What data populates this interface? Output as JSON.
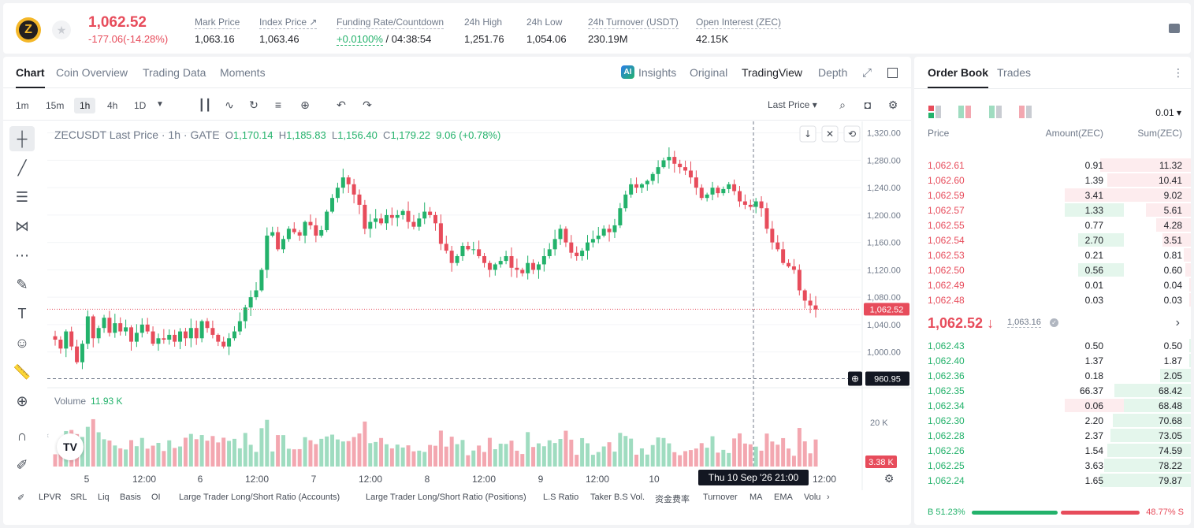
{
  "ticker": {
    "logo_letter": "Z",
    "price": "1,062.52",
    "change": "-177.06(-14.28%)",
    "stats": [
      {
        "label": "Mark Price",
        "value": "1,063.16"
      },
      {
        "label": "Index Price ↗",
        "value": "1,063.46"
      },
      {
        "label": "Funding Rate/Countdown",
        "value_rate": "+0.0100%",
        "value_time": "/ 04:38:54"
      },
      {
        "label": "24h High",
        "value": "1,251.76"
      },
      {
        "label": "24h Low",
        "value": "1,054.06"
      },
      {
        "label": "24h Turnover (USDT)",
        "value": "230.19M"
      },
      {
        "label": "Open Interest (ZEC)",
        "value": "42.15K"
      }
    ]
  },
  "chart_tabs": [
    "Chart",
    "Coin Overview",
    "Trading Data",
    "Moments"
  ],
  "view_tabs": {
    "ai": "AI",
    "insights": "Insights",
    "original": "Original",
    "tradingview": "TradingView",
    "depth": "Depth"
  },
  "intervals": [
    "1m",
    "15m",
    "1h",
    "4h",
    "1D"
  ],
  "price_type": "Last Price ▾",
  "legend": {
    "symbol": "ZECUSDT Last Price · 1h · GATE",
    "o_label": "O",
    "o": "1,170.14",
    "h_label": "H",
    "h": "1,185.83",
    "l_label": "L",
    "l": "1,156.40",
    "c_label": "C",
    "c": "1,179.22",
    "chg": "9.06 (+0.78%)"
  },
  "volume": {
    "label": "Volume",
    "value": "11.93 K"
  },
  "tv_logo": "TV",
  "chart_data": {
    "type": "candlestick",
    "title": "ZECUSDT Last Price · 1h · GATE",
    "y_ticks": [
      "1,320.00",
      "1,280.00",
      "1,240.00",
      "1,200.00",
      "1,160.00",
      "1,120.00",
      "1,080.00",
      "1,040.00",
      "1,000.00"
    ],
    "y_tick_values": [
      1320,
      1280,
      1240,
      1200,
      1160,
      1120,
      1080,
      1040,
      1000
    ],
    "ylim": [
      980,
      1330
    ],
    "x_ticks": [
      "5",
      "12:00",
      "6",
      "12:00",
      "7",
      "12:00",
      "8",
      "12:00",
      "9",
      "12:00",
      "10",
      "12:00"
    ],
    "last_price_tag": "1,062.52",
    "last_price": 1062.52,
    "crosshair_tag": "960.95",
    "crosshair_price": 960.95,
    "crosshair_time": "Thu 10 Sep '26   21:00",
    "volume_tick": "20 K",
    "volume_tag": "3.38 K",
    "closes": [
      1018,
      1005,
      1030,
      1008,
      985,
      1012,
      1052,
      1020,
      1035,
      1050,
      1028,
      1042,
      1030,
      1036,
      1015,
      1028,
      1040,
      1030,
      1012,
      1020,
      1018,
      1025,
      1015,
      1030,
      1020,
      1035,
      1020,
      1045,
      1035,
      1025,
      1015,
      1008,
      1020,
      1030,
      1045,
      1065,
      1080,
      1090,
      1120,
      1170,
      1175,
      1150,
      1165,
      1180,
      1175,
      1170,
      1190,
      1185,
      1170,
      1178,
      1205,
      1225,
      1240,
      1255,
      1245,
      1230,
      1215,
      1180,
      1190,
      1195,
      1188,
      1200,
      1196,
      1200,
      1206,
      1190,
      1183,
      1195,
      1205,
      1200,
      1188,
      1158,
      1148,
      1130,
      1140,
      1155,
      1150,
      1150,
      1140,
      1130,
      1120,
      1128,
      1133,
      1140,
      1123,
      1120,
      1115,
      1130,
      1120,
      1128,
      1140,
      1150,
      1165,
      1180,
      1160,
      1145,
      1140,
      1148,
      1160,
      1165,
      1170,
      1180,
      1175,
      1185,
      1210,
      1230,
      1245,
      1240,
      1245,
      1250,
      1260,
      1270,
      1280,
      1285,
      1275,
      1270,
      1265,
      1255,
      1240,
      1225,
      1230,
      1240,
      1232,
      1238,
      1245,
      1235,
      1220,
      1215,
      1212,
      1220,
      1210,
      1180,
      1160,
      1150,
      1130,
      1125,
      1120,
      1090,
      1075,
      1068,
      1062
    ]
  },
  "indicators": [
    "LPVR",
    "SRL",
    "Liq",
    "Basis",
    "OI",
    "Large Trader Long/Short Ratio (Accounts)",
    "Large Trader Long/Short Ratio (Positions)",
    "L.S Ratio",
    "Taker B.S Vol.",
    "资金费率",
    "Turnover",
    "MA",
    "EMA",
    "Volu"
  ],
  "book": {
    "tabs": [
      "Order Book",
      "Trades"
    ],
    "step": "0.01 ▾",
    "headers": {
      "price": "Price",
      "amount": "Amount(ZEC)",
      "sum": "Sum(ZEC)"
    },
    "asks": [
      {
        "price": "1,062.61",
        "amount": "0.91",
        "sum": "11.32",
        "depth": 1.0,
        "own": 0
      },
      {
        "price": "1,062.60",
        "amount": "1.39",
        "sum": "10.41",
        "depth": 0.92,
        "own": 0
      },
      {
        "price": "1,062.59",
        "amount": "3.41",
        "sum": "9.02",
        "depth": 0.8,
        "own": 0.52,
        "own_color": "red"
      },
      {
        "price": "1,062.57",
        "amount": "1.33",
        "sum": "5.61",
        "depth": 0.5,
        "own": 0.52,
        "own_color": "green"
      },
      {
        "price": "1,062.55",
        "amount": "0.77",
        "sum": "4.28",
        "depth": 0.38,
        "own": 0
      },
      {
        "price": "1,062.54",
        "amount": "2.70",
        "sum": "3.51",
        "depth": 0.31,
        "own": 0.4,
        "own_color": "green"
      },
      {
        "price": "1,062.53",
        "amount": "0.21",
        "sum": "0.81",
        "depth": 0.08,
        "own": 0
      },
      {
        "price": "1,062.50",
        "amount": "0.56",
        "sum": "0.60",
        "depth": 0.06,
        "own": 0.4,
        "own_color": "green"
      },
      {
        "price": "1,062.49",
        "amount": "0.01",
        "sum": "0.04",
        "depth": 0.01,
        "own": 0
      },
      {
        "price": "1,062.48",
        "amount": "0.03",
        "sum": "0.03",
        "depth": 0.01,
        "own": 0
      }
    ],
    "mid_price": "1,062.52 ↓",
    "mid_mark": "1,063.16",
    "bids": [
      {
        "price": "1,062.43",
        "amount": "0.50",
        "sum": "0.50",
        "depth": 0.01,
        "own": 0
      },
      {
        "price": "1,062.40",
        "amount": "1.37",
        "sum": "1.87",
        "depth": 0.02,
        "own": 0
      },
      {
        "price": "1,062.36",
        "amount": "0.18",
        "sum": "2.05",
        "depth": 0.34,
        "own": 0
      },
      {
        "price": "1,062.35",
        "amount": "66.37",
        "sum": "68.42",
        "depth": 0.84,
        "own": 0
      },
      {
        "price": "1,062.34",
        "amount": "0.06",
        "sum": "68.48",
        "depth": 0.84,
        "own": 0.52,
        "own_color": "red"
      },
      {
        "price": "1,062.30",
        "amount": "2.20",
        "sum": "70.68",
        "depth": 0.86,
        "own": 0
      },
      {
        "price": "1,062.28",
        "amount": "2.37",
        "sum": "73.05",
        "depth": 0.89,
        "own": 0
      },
      {
        "price": "1,062.26",
        "amount": "1.54",
        "sum": "74.59",
        "depth": 0.92,
        "own": 0
      },
      {
        "price": "1,062.25",
        "amount": "3.63",
        "sum": "78.22",
        "depth": 0.96,
        "own": 0
      },
      {
        "price": "1,062.24",
        "amount": "1.65",
        "sum": "79.87",
        "depth": 1.0,
        "own": 0
      }
    ],
    "buy_ratio": "B 51.23%",
    "sell_ratio": "48.77% S",
    "buy_fraction": 0.5123
  },
  "colors": {
    "up": "#23b26b",
    "down": "#e74c5b",
    "up_vol": "#9fdcc0",
    "down_vol": "#f3a7b0"
  }
}
